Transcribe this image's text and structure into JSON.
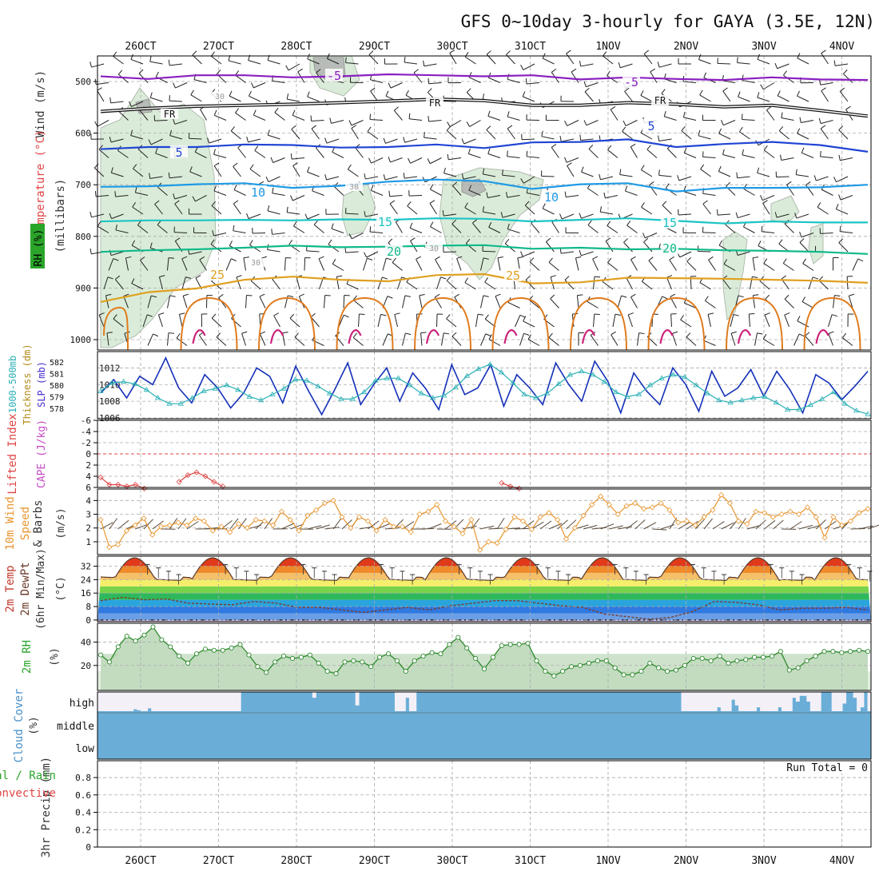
{
  "chart_data": {
    "type": "multi-panel meteogram",
    "title": "GFS 0~10day 3-hourly for GAYA (3.5E, 12N)",
    "x_ticks": [
      "26OCT",
      "27OCT",
      "28OCT",
      "29OCT",
      "30OCT",
      "31OCT",
      "1NOV",
      "2NOV",
      "3NOV",
      "4NOV"
    ],
    "panels": [
      {
        "id": "upper_air",
        "type": "contour",
        "ylabel": "(millibars)",
        "legend_labels": [
          "Wind (m/s)",
          "Temperature (°C)",
          "RH (%)"
        ],
        "y_ticks": [
          500,
          600,
          700,
          800,
          900,
          1000
        ],
        "ylim": [
          1000,
          445
        ],
        "isotherms": [
          {
            "name": "-5",
            "color": "#8a1fbf",
            "levels_mb": [
              490,
              495,
              488,
              488,
              492,
              490,
              486,
              488,
              490,
              488,
              496,
              492,
              495,
              497,
              492,
              496,
              497
            ]
          },
          {
            "name": "FR",
            "color": "#111111",
            "levels_mb": [
              558,
              552,
              548,
              546,
              544,
              541,
              538,
              534,
              537,
              546,
              546,
              541,
              544,
              549,
              546,
              556,
              567
            ]
          },
          {
            "name": "5",
            "color": "#2045d4",
            "levels_mb": [
              631,
              627,
              627,
              622,
              623,
              628,
              627,
              622,
              629,
              618,
              617,
              612,
              627,
              621,
              617,
              623,
              636
            ]
          },
          {
            "name": "10",
            "color": "#1f9ae6",
            "levels_mb": [
              704,
              703,
              699,
              697,
              706,
              702,
              694,
              690,
              693,
              708,
              699,
              697,
              713,
              706,
              706,
              705,
              700
            ]
          },
          {
            "name": "15",
            "color": "#1cc4c4",
            "levels_mb": [
              771,
              769,
              769,
              768,
              769,
              767,
              768,
              765,
              766,
              771,
              768,
              765,
              770,
              775,
              771,
              773,
              773
            ]
          },
          {
            "name": "20",
            "color": "#10b98a",
            "levels_mb": [
              830,
              827,
              825,
              822,
              818,
              821,
              820,
              818,
              817,
              824,
              822,
              825,
              824,
              827,
              828,
              830,
              834
            ]
          },
          {
            "name": "25",
            "color": "#e0a020",
            "levels_mb": [
              927,
              908,
              901,
              884,
              878,
              884,
              887,
              875,
              873,
              891,
              889,
              880,
              881,
              882,
              884,
              886,
              890
            ]
          }
        ],
        "contour_labels": [
          "-5",
          "-5",
          "FR",
          "FR",
          "FR",
          "5",
          "5",
          "10",
          "10",
          "15",
          "15",
          "20",
          "20",
          "25",
          "25",
          "30",
          "30",
          "30",
          "30"
        ]
      },
      {
        "id": "thickness_slp",
        "type": "line",
        "ylabel_left": "Thickness (dm)",
        "ylabel_right": "SLP (mb)",
        "left_label": "1000-500mb",
        "y_ticks_thickness": [
          578,
          579,
          580,
          581,
          582
        ],
        "y_ticks_slp": [
          1006,
          1008,
          1010,
          1012
        ],
        "slp_mb": [
          1009.0,
          1010.6,
          1008.4,
          1011.0,
          1010.0,
          1013.2,
          1009.6,
          1007.8,
          1011.2,
          1009.6,
          1007.2,
          1009.0,
          1012.0,
          1011.0,
          1007.8,
          1012.2,
          1009.2,
          1006.4,
          1009.4,
          1012.6,
          1007.6,
          1010.0,
          1012.0,
          1008.0,
          1011.4,
          1009.5,
          1007.0,
          1012.4,
          1008.8,
          1009.6,
          1012.4,
          1007.4,
          1011.2,
          1009.6,
          1007.6,
          1012.6,
          1010.0,
          1008.0,
          1012.8,
          1010.4,
          1006.6,
          1011.4,
          1009.2,
          1007.6,
          1012.0,
          1010.0,
          1006.8,
          1011.6,
          1008.6,
          1009.6,
          1011.8,
          1008.6,
          1011.6,
          1009.4,
          1006.6,
          1011.2,
          1010.2,
          1008.2,
          1009.8,
          1011.6
        ],
        "thickness_dm": [
          579.5,
          580.2,
          580.3,
          580.1,
          579.6,
          578.9,
          578.4,
          578.4,
          578.9,
          579.5,
          579.7,
          580.0,
          579.6,
          579.0,
          578.7,
          579.2,
          579.7,
          580.5,
          580.4,
          579.9,
          579.3,
          578.8,
          578.8,
          579.4,
          580.4,
          580.6,
          580.6,
          580.0,
          579.3,
          578.9,
          579.1,
          579.8,
          580.8,
          581.4,
          581.8,
          581.1,
          580.2,
          579.2,
          578.9,
          579.3,
          580.1,
          580.9,
          581.2,
          580.9,
          580.3,
          579.4,
          579.0,
          579.2,
          580.0,
          580.6,
          580.9,
          580.7,
          580.0,
          579.3,
          578.7,
          578.5,
          578.7,
          578.9,
          579.0,
          578.5,
          577.9,
          577.9,
          578.3,
          578.8,
          579.4,
          578.4,
          577.8,
          577.5
        ]
      },
      {
        "id": "instability",
        "type": "line",
        "ylabel": "Lifted Index",
        "ylabel2": "CAPE (J/kg)",
        "y_ticks": [
          "-6",
          "-4",
          "-2",
          "0",
          "2",
          "4",
          "6"
        ],
        "lifted_index_segments": [
          [
            [
              0,
              4.2
            ],
            [
              1,
              5.5
            ],
            [
              2,
              5.5
            ],
            [
              3,
              5.8
            ],
            [
              4,
              5.5
            ],
            [
              5,
              6.2
            ]
          ],
          [
            [
              9,
              5.0
            ],
            [
              10,
              3.8
            ],
            [
              11,
              3.3
            ],
            [
              12,
              4.0
            ],
            [
              13,
              5.0
            ],
            [
              14,
              5.8
            ]
          ],
          [
            [
              46,
              5.2
            ],
            [
              47,
              5.8
            ],
            [
              48,
              6.2
            ]
          ]
        ]
      },
      {
        "id": "wind10m",
        "type": "line",
        "ylabel": "10m Wind Speed & Barbs",
        "unit": "(m/s)",
        "y_ticks": [
          1,
          2,
          3,
          4
        ],
        "speed_ms": [
          2.6,
          0.6,
          0.8,
          1.8,
          2.2,
          2.7,
          1.5,
          2.1,
          2.2,
          2.4,
          2.2,
          2.7,
          2.5,
          1.8,
          2.1,
          1.7,
          2.3,
          2.0,
          2.6,
          2.5,
          2.2,
          3.2,
          2.6,
          1.8,
          2.9,
          3.3,
          3.8,
          4.0,
          2.8,
          2.0,
          2.8,
          2.5,
          1.8,
          2.6,
          2.1,
          2.1,
          1.7,
          3.0,
          3.2,
          3.7,
          2.5,
          2.1,
          1.6,
          2.6,
          0.4,
          1.0,
          0.9,
          1.9,
          2.8,
          2.5,
          1.9,
          2.8,
          3.1,
          2.6,
          1.2,
          2.0,
          2.9,
          3.7,
          4.3,
          3.7,
          3.0,
          3.6,
          3.8,
          3.4,
          3.5,
          3.8,
          3.3,
          2.4,
          2.5,
          2.2,
          2.8,
          3.3,
          4.4,
          3.8,
          2.5,
          2.3,
          3.2,
          3.1,
          2.8,
          3.0,
          3.2,
          3.0,
          3.5,
          2.8,
          1.3,
          2.8,
          2.2,
          2.5,
          3.1,
          3.4
        ]
      },
      {
        "id": "temperature2m",
        "type": "area",
        "ylabel": "2m Temp 2m DewPt (6hr Min/Max)",
        "unit": "(°C)",
        "y_ticks": [
          0,
          8,
          16,
          24,
          32
        ],
        "temperature_c": {
          "daily_min": 23.5,
          "daily_max": 37
        },
        "dewpoint_c": [
          11.5,
          13.5,
          12,
          12.5,
          10,
          9.5,
          9,
          11,
          10,
          7.5,
          7.5,
          6,
          4.5,
          6,
          7.5,
          6,
          8.5,
          10,
          11.5,
          11.5,
          10,
          8.5,
          7.5,
          3.5,
          2,
          0.5,
          1.5,
          5,
          11,
          10.5,
          9,
          6,
          7,
          7,
          7.5,
          6
        ]
      },
      {
        "id": "rh2m",
        "type": "area",
        "ylabel": "2m RH",
        "unit": "(%)",
        "y_ticks": [
          20,
          40
        ],
        "rh_pct": [
          29,
          23,
          36,
          45,
          41,
          46,
          53,
          42,
          36,
          28,
          22,
          30,
          34,
          33,
          33,
          35,
          38,
          29,
          19,
          14,
          23,
          28,
          26,
          27,
          29,
          22,
          15,
          13,
          23,
          24,
          23,
          19,
          27,
          30,
          24,
          15,
          24,
          28,
          31,
          30,
          38,
          44,
          35,
          26,
          17,
          27,
          37,
          38,
          38,
          39,
          24,
          15,
          11,
          15,
          19,
          20,
          22,
          24,
          24,
          18,
          12,
          12,
          15,
          22,
          18,
          15,
          16,
          20,
          26,
          26,
          24,
          28,
          22,
          24,
          25,
          27,
          27,
          28,
          32,
          16,
          18,
          24,
          28,
          32,
          32,
          31,
          32,
          33,
          32
        ]
      },
      {
        "id": "cloud",
        "type": "heatmap",
        "ylabel": "Cloud Cover (%)",
        "y_ticks": [
          "high",
          "middle",
          "low"
        ],
        "high_cloud_pct": [
          0,
          0,
          0,
          0,
          0,
          0,
          0,
          0,
          0,
          0,
          10,
          5,
          0,
          0,
          15,
          0,
          0,
          0,
          0,
          0,
          0,
          0,
          0,
          0,
          0,
          0,
          0,
          0,
          0,
          0,
          0,
          0,
          0,
          0,
          0,
          0,
          0,
          0,
          0,
          0,
          100,
          100,
          100,
          100,
          100,
          100,
          100,
          100,
          100,
          100,
          100,
          100,
          100,
          100,
          100,
          100,
          100,
          100,
          100,
          100,
          70,
          100,
          100,
          100,
          100,
          100,
          100,
          100,
          100,
          100,
          100,
          100,
          30,
          100,
          100,
          100,
          100,
          100,
          100,
          100,
          100,
          100,
          100,
          0,
          0,
          0,
          70,
          0,
          0,
          100,
          100,
          100,
          100,
          100,
          100,
          100,
          100,
          100,
          100,
          100,
          100,
          100,
          100,
          100,
          100,
          100,
          100,
          100,
          100,
          100,
          100,
          100,
          100,
          100,
          100,
          100,
          100,
          100,
          100,
          100,
          100,
          100,
          100,
          100,
          100,
          100,
          100,
          100,
          100,
          100,
          100,
          100,
          100,
          100,
          100,
          100,
          100,
          100,
          100,
          100,
          100,
          100,
          100,
          100,
          100,
          100,
          100,
          100,
          100,
          100,
          100,
          100,
          100,
          100,
          100,
          100,
          100,
          100,
          100,
          100,
          100,
          100,
          100,
          0,
          0,
          0,
          0,
          0,
          0,
          0,
          0,
          0,
          0,
          20,
          0,
          0,
          0,
          60,
          30,
          0,
          0,
          0,
          0,
          0,
          20,
          0,
          0,
          0,
          0,
          0,
          20,
          0,
          0,
          0,
          70,
          50,
          80,
          80,
          50,
          0,
          0,
          0,
          100,
          100,
          100,
          0,
          0,
          0,
          40,
          100,
          100,
          70,
          0,
          20,
          100,
          0
        ],
        "middle_cloud_pct": 100,
        "low_cloud_pct": 100
      },
      {
        "id": "precip",
        "type": "bar",
        "ylabel": "3hr Precip (mm)",
        "label_total": "Total / Rain",
        "label_conv": "Convective",
        "y_ticks": [
          "0",
          "0.2",
          "0.4",
          "0.6",
          "0.8"
        ],
        "annotation": "Run Total = 0",
        "values_mm": []
      }
    ]
  }
}
